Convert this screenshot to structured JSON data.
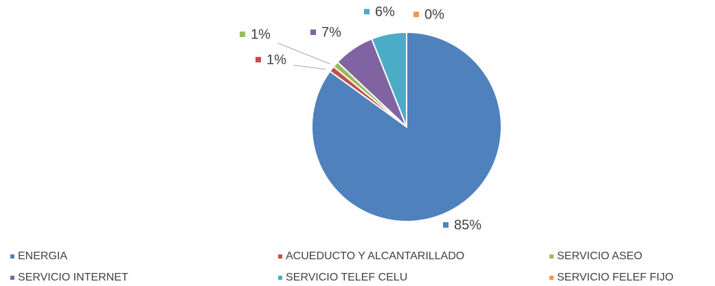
{
  "chart_data": {
    "type": "pie",
    "categories": [
      "ENERGIA",
      "ACUEDUCTO Y ALCANTARILLADO",
      "SERVICIO ASEO",
      "SERVICIO INTERNET",
      "SERVICIO TELEF CELU",
      "SERVICIO FELEF FIJO"
    ],
    "values": [
      85,
      1,
      1,
      7,
      6,
      0
    ],
    "value_labels": [
      "85%",
      "1%",
      "1%",
      "7%",
      "6%",
      "0%"
    ],
    "colors": [
      "#4f81bd",
      "#c0504d",
      "#9bbb59",
      "#8064a2",
      "#4bacc6",
      "#f79646"
    ],
    "legend": "bottom"
  }
}
